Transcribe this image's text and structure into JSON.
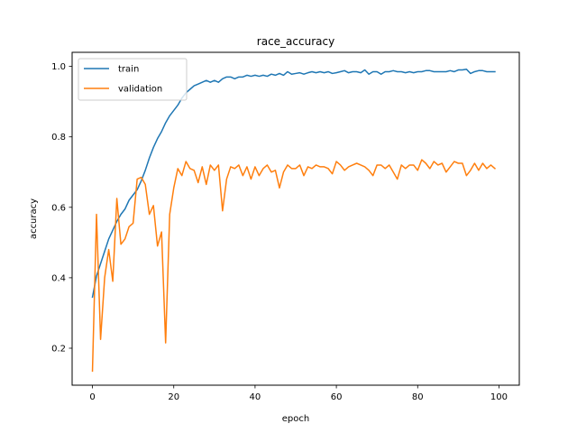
{
  "chart_data": {
    "type": "line",
    "title": "race_accuracy",
    "xlabel": "epoch",
    "ylabel": "accuracy",
    "xlim": [
      -5,
      105
    ],
    "ylim": [
      0.095,
      1.04
    ],
    "xticks": [
      0,
      20,
      40,
      60,
      80,
      100
    ],
    "yticks": [
      0.2,
      0.4,
      0.6,
      0.8,
      1.0
    ],
    "ytick_labels": [
      "0.2",
      "0.4",
      "0.6",
      "0.8",
      "1.0"
    ],
    "grid": false,
    "legend_position": "top-left",
    "x": [
      0,
      1,
      2,
      3,
      4,
      5,
      6,
      7,
      8,
      9,
      10,
      11,
      12,
      13,
      14,
      15,
      16,
      17,
      18,
      19,
      20,
      21,
      22,
      23,
      24,
      25,
      26,
      27,
      28,
      29,
      30,
      31,
      32,
      33,
      34,
      35,
      36,
      37,
      38,
      39,
      40,
      41,
      42,
      43,
      44,
      45,
      46,
      47,
      48,
      49,
      50,
      51,
      52,
      53,
      54,
      55,
      56,
      57,
      58,
      59,
      60,
      61,
      62,
      63,
      64,
      65,
      66,
      67,
      68,
      69,
      70,
      71,
      72,
      73,
      74,
      75,
      76,
      77,
      78,
      79,
      80,
      81,
      82,
      83,
      84,
      85,
      86,
      87,
      88,
      89,
      90,
      91,
      92,
      93,
      94,
      95,
      96,
      97,
      98,
      99
    ],
    "series": [
      {
        "name": "train",
        "color": "#1f77b4",
        "values": [
          0.345,
          0.405,
          0.44,
          0.475,
          0.51,
          0.535,
          0.56,
          0.58,
          0.595,
          0.62,
          0.635,
          0.65,
          0.675,
          0.705,
          0.74,
          0.77,
          0.795,
          0.815,
          0.84,
          0.86,
          0.875,
          0.89,
          0.91,
          0.925,
          0.935,
          0.945,
          0.95,
          0.955,
          0.96,
          0.955,
          0.96,
          0.955,
          0.965,
          0.97,
          0.97,
          0.965,
          0.97,
          0.97,
          0.975,
          0.972,
          0.975,
          0.972,
          0.975,
          0.972,
          0.978,
          0.975,
          0.98,
          0.975,
          0.985,
          0.978,
          0.98,
          0.982,
          0.978,
          0.982,
          0.985,
          0.982,
          0.985,
          0.982,
          0.985,
          0.98,
          0.982,
          0.985,
          0.988,
          0.982,
          0.985,
          0.985,
          0.982,
          0.99,
          0.978,
          0.985,
          0.985,
          0.978,
          0.985,
          0.985,
          0.988,
          0.985,
          0.985,
          0.982,
          0.985,
          0.982,
          0.985,
          0.985,
          0.988,
          0.988,
          0.985,
          0.985,
          0.985,
          0.985,
          0.988,
          0.985,
          0.99,
          0.99,
          0.992,
          0.98,
          0.985,
          0.988,
          0.988,
          0.985,
          0.985,
          0.985
        ]
      },
      {
        "name": "validation",
        "color": "#ff7f0e",
        "values": [
          0.135,
          0.58,
          0.225,
          0.4,
          0.48,
          0.39,
          0.625,
          0.495,
          0.51,
          0.545,
          0.555,
          0.68,
          0.685,
          0.665,
          0.58,
          0.605,
          0.49,
          0.53,
          0.215,
          0.58,
          0.655,
          0.71,
          0.69,
          0.73,
          0.71,
          0.705,
          0.67,
          0.715,
          0.665,
          0.72,
          0.705,
          0.72,
          0.59,
          0.68,
          0.715,
          0.71,
          0.72,
          0.69,
          0.715,
          0.68,
          0.715,
          0.69,
          0.71,
          0.72,
          0.7,
          0.705,
          0.655,
          0.7,
          0.72,
          0.71,
          0.71,
          0.72,
          0.69,
          0.715,
          0.71,
          0.72,
          0.715,
          0.715,
          0.71,
          0.695,
          0.73,
          0.72,
          0.705,
          0.715,
          0.72,
          0.725,
          0.72,
          0.715,
          0.705,
          0.69,
          0.72,
          0.72,
          0.71,
          0.72,
          0.7,
          0.68,
          0.72,
          0.71,
          0.72,
          0.72,
          0.705,
          0.735,
          0.725,
          0.71,
          0.73,
          0.72,
          0.725,
          0.7,
          0.715,
          0.73,
          0.725,
          0.725,
          0.69,
          0.705,
          0.725,
          0.705,
          0.725,
          0.71,
          0.72,
          0.71
        ]
      }
    ]
  }
}
